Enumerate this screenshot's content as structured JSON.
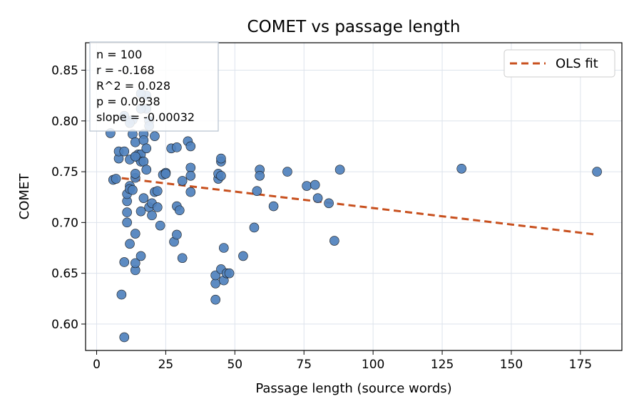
{
  "chart_data": {
    "type": "scatter",
    "title": "COMET vs passage length",
    "xlabel": "Passage length (source words)",
    "ylabel": "COMET",
    "xlim": [
      -4,
      190
    ],
    "ylim": [
      0.574,
      0.877
    ],
    "xticks": [
      0,
      25,
      50,
      75,
      100,
      125,
      150,
      175
    ],
    "yticks": [
      0.6,
      0.65,
      0.7,
      0.75,
      0.8,
      0.85
    ],
    "grid": true,
    "legend": {
      "position": "top-right",
      "entries": [
        {
          "label": "OLS fit"
        }
      ]
    },
    "stats_box": {
      "position": "top-left",
      "lines": [
        "n = 100",
        "r = -0.168",
        "R^2 = 0.028",
        "p = 0.0938",
        "slope = -0.00032"
      ]
    },
    "colors": {
      "points": "#4f81bd",
      "point_edge": "#1a1a1a",
      "fit": "#c8501e",
      "grid": "#dde3ec"
    },
    "fit_line": {
      "x": [
        5,
        181
      ],
      "y": [
        0.745,
        0.688
      ]
    },
    "series": [
      {
        "x": [
          5,
          6,
          7,
          8,
          8,
          10,
          10,
          11,
          11,
          11,
          11,
          12,
          12,
          12,
          13,
          13,
          13,
          14,
          14,
          14,
          14,
          14,
          14,
          14,
          15,
          15,
          16,
          16,
          16,
          16,
          17,
          17,
          17,
          17,
          18,
          18,
          18,
          19,
          20,
          20,
          21,
          22,
          22,
          23,
          24,
          25,
          27,
          28,
          29,
          29,
          29,
          30,
          31,
          31,
          33,
          34,
          34,
          34,
          34,
          43,
          43,
          43,
          44,
          44,
          45,
          45,
          45,
          45,
          46,
          46,
          47,
          48,
          53,
          57,
          58,
          59,
          59,
          64,
          69,
          76,
          79,
          80,
          84,
          86,
          88,
          132,
          181,
          9,
          10,
          12,
          14,
          16,
          18,
          19,
          21,
          10,
          12,
          16,
          19,
          25
        ],
        "y": [
          0.788,
          0.742,
          0.743,
          0.763,
          0.77,
          0.661,
          0.587,
          0.71,
          0.721,
          0.728,
          0.7,
          0.736,
          0.733,
          0.679,
          0.787,
          0.801,
          0.732,
          0.653,
          0.66,
          0.689,
          0.744,
          0.748,
          0.765,
          0.779,
          0.767,
          0.764,
          0.711,
          0.667,
          0.767,
          0.76,
          0.787,
          0.724,
          0.781,
          0.76,
          0.752,
          0.773,
          0.825,
          0.715,
          0.707,
          0.719,
          0.73,
          0.715,
          0.731,
          0.697,
          0.747,
          0.749,
          0.773,
          0.681,
          0.774,
          0.716,
          0.688,
          0.712,
          0.665,
          0.741,
          0.78,
          0.775,
          0.754,
          0.746,
          0.73,
          0.624,
          0.64,
          0.648,
          0.743,
          0.748,
          0.76,
          0.763,
          0.746,
          0.654,
          0.675,
          0.643,
          0.65,
          0.65,
          0.667,
          0.695,
          0.731,
          0.752,
          0.746,
          0.716,
          0.75,
          0.736,
          0.737,
          0.724,
          0.719,
          0.682,
          0.752,
          0.753,
          0.75,
          0.629,
          0.77,
          0.762,
          0.765,
          0.827,
          0.812,
          0.8,
          0.785,
          0.805,
          0.798,
          0.812,
          0.795,
          0.748
        ]
      }
    ]
  }
}
